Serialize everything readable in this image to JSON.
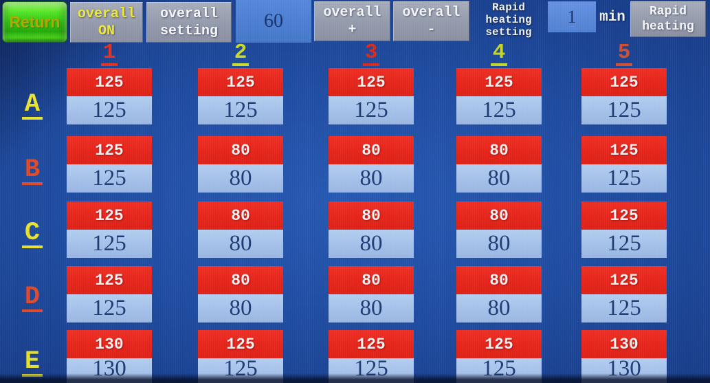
{
  "toolbar": {
    "return_label": "Return",
    "overall_on": {
      "line1": "overall",
      "line2": "ON"
    },
    "overall_setting": {
      "line1": "overall",
      "line2": "setting"
    },
    "overall_value": "60",
    "overall_plus": {
      "line1": "overall",
      "line2": "+"
    },
    "overall_minus": {
      "line1": "overall",
      "line2": "-"
    },
    "rapid_heating_setting": {
      "line1": "Rapid",
      "line2": "heating",
      "line3": "setting"
    },
    "rapid_minutes_value": "1",
    "min_label": "min",
    "rapid_heating": {
      "line1": "Rapid",
      "line2": "heating"
    }
  },
  "colors": {
    "red_box": "#e3241a",
    "blue_box": "#a3bfe8",
    "background": "#1e4a9e",
    "button_gray": "#939aab",
    "return_green": "#30c210",
    "on_yellow": "#ece73a"
  },
  "grid": {
    "column_headers": [
      {
        "label": "1",
        "color": "#e03222"
      },
      {
        "label": "2",
        "color": "#c9d92a"
      },
      {
        "label": "3",
        "color": "#d62a1c"
      },
      {
        "label": "4",
        "color": "#c2d428"
      },
      {
        "label": "5",
        "color": "#cf4f30"
      }
    ],
    "rows": [
      {
        "label": "A",
        "color": "#e8e232",
        "cells": [
          {
            "set": "125",
            "actual": "125"
          },
          {
            "set": "125",
            "actual": "125"
          },
          {
            "set": "125",
            "actual": "125"
          },
          {
            "set": "125",
            "actual": "125"
          },
          {
            "set": "125",
            "actual": "125"
          }
        ]
      },
      {
        "label": "B",
        "color": "#dd4a2c",
        "cells": [
          {
            "set": "125",
            "actual": "125"
          },
          {
            "set": "80",
            "actual": "80"
          },
          {
            "set": "80",
            "actual": "80"
          },
          {
            "set": "80",
            "actual": "80"
          },
          {
            "set": "125",
            "actual": "125"
          }
        ]
      },
      {
        "label": "C",
        "color": "#e6e030",
        "cells": [
          {
            "set": "125",
            "actual": "125"
          },
          {
            "set": "80",
            "actual": "80"
          },
          {
            "set": "80",
            "actual": "80"
          },
          {
            "set": "80",
            "actual": "80"
          },
          {
            "set": "125",
            "actual": "125"
          }
        ]
      },
      {
        "label": "D",
        "color": "#dd4a2c",
        "cells": [
          {
            "set": "125",
            "actual": "125"
          },
          {
            "set": "80",
            "actual": "80"
          },
          {
            "set": "80",
            "actual": "80"
          },
          {
            "set": "80",
            "actual": "80"
          },
          {
            "set": "125",
            "actual": "125"
          }
        ]
      },
      {
        "label": "E",
        "color": "#e3dd2e",
        "cells": [
          {
            "set": "130",
            "actual": "130"
          },
          {
            "set": "125",
            "actual": "125"
          },
          {
            "set": "125",
            "actual": "125"
          },
          {
            "set": "125",
            "actual": "125"
          },
          {
            "set": "130",
            "actual": "130"
          }
        ]
      }
    ]
  }
}
